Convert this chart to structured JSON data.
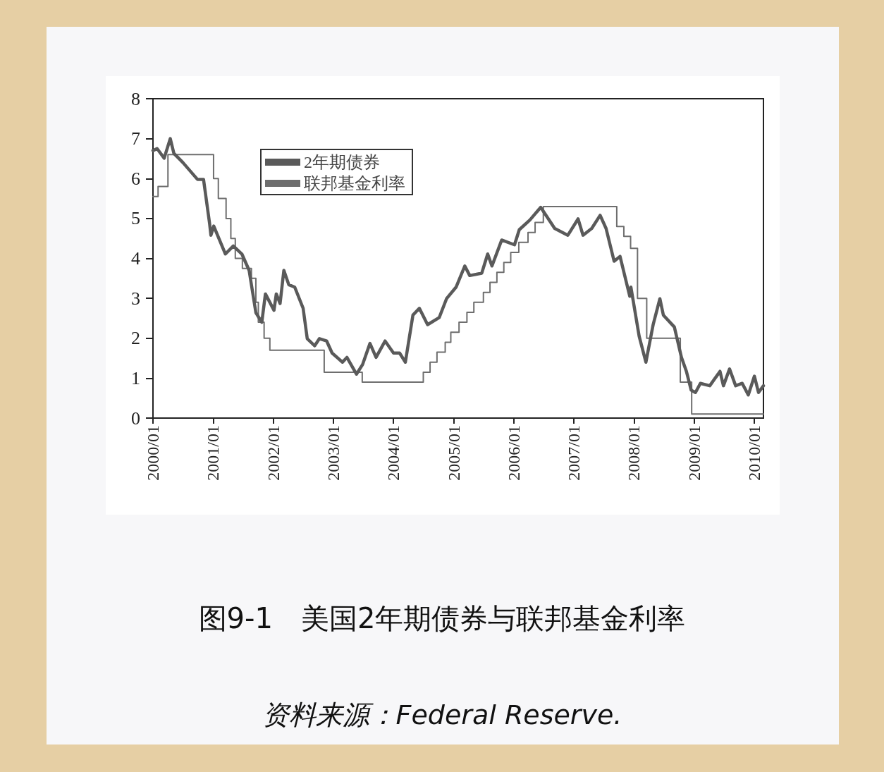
{
  "chart_data": {
    "type": "line",
    "title": "图9-1　美国2年期债券与联邦基金利率",
    "annotations": [
      "资料来源：Federal Reserve."
    ],
    "xlim": [
      "2000-01-01",
      "2010-02-25"
    ],
    "xticks": [
      {
        "value": "2000-01-01",
        "label": "2000/01"
      },
      {
        "value": "2001-01-01",
        "label": "2001/01"
      },
      {
        "value": "2002-01-01",
        "label": "2002/01"
      },
      {
        "value": "2003-01-01",
        "label": "2003/01"
      },
      {
        "value": "2004-01-01",
        "label": "2004/01"
      },
      {
        "value": "2005-01-01",
        "label": "2005/01"
      },
      {
        "value": "2006-01-01",
        "label": "2006/01"
      },
      {
        "value": "2007-01-01",
        "label": "2007/01"
      },
      {
        "value": "2008-01-01",
        "label": "2008/01"
      },
      {
        "value": "2009-01-01",
        "label": "2009/01"
      },
      {
        "value": "2010-01-01",
        "label": "2010/01"
      }
    ],
    "ylim": [
      0,
      8
    ],
    "yticks": [
      0,
      1,
      2,
      3,
      4,
      5,
      6,
      7,
      8
    ],
    "grid": false,
    "legend": "top left",
    "marker": "none",
    "line_style": "solid",
    "series": [
      {
        "name": "2年期债券",
        "color": "#5a5a5a",
        "x": [
          "2000-01-01",
          "2000-01-26",
          "2000-03-09",
          "2000-04-15",
          "2000-05-07",
          "2000-07-01",
          "2000-09-27",
          "2000-11-03",
          "2000-12-10",
          "2000-12-18",
          "2001-01-04",
          "2001-03-16",
          "2001-05-03",
          "2001-06-24",
          "2001-08-07",
          "2001-09-17",
          "2001-10-23",
          "2001-11-14",
          "2002-01-05",
          "2002-01-19",
          "2002-02-11",
          "2002-03-06",
          "2002-04-05",
          "2002-05-11",
          "2002-07-01",
          "2002-07-26",
          "2002-09-09",
          "2002-10-08",
          "2002-11-21",
          "2002-12-24",
          "2003-02-25",
          "2003-03-24",
          "2003-05-21",
          "2003-06-27",
          "2003-08-11",
          "2003-09-17",
          "2003-11-11",
          "2004-01-01",
          "2004-02-07",
          "2004-03-13",
          "2004-04-28",
          "2004-06-06",
          "2004-07-26",
          "2004-10-05",
          "2004-11-18",
          "2005-01-15",
          "2005-03-09",
          "2005-04-08",
          "2005-06-20",
          "2005-07-26",
          "2005-08-21",
          "2005-10-19",
          "2006-01-05",
          "2006-02-03",
          "2006-04-08",
          "2006-06-13",
          "2006-09-06",
          "2006-11-25",
          "2007-01-26",
          "2007-02-25",
          "2007-04-19",
          "2007-06-09",
          "2007-07-15",
          "2007-09-02",
          "2007-10-08",
          "2007-12-06",
          "2007-12-13",
          "2008-02-01",
          "2008-03-13",
          "2008-04-26",
          "2008-06-06",
          "2008-06-27",
          "2008-09-02",
          "2008-10-15",
          "2008-11-14",
          "2008-12-13",
          "2009-01-08",
          "2009-02-07",
          "2009-04-05",
          "2009-06-06",
          "2009-06-27",
          "2009-08-03",
          "2009-09-09",
          "2009-10-19",
          "2009-11-25",
          "2010-01-01",
          "2010-01-26",
          "2010-02-25"
        ],
        "values": [
          6.7,
          6.75,
          6.51,
          7.0,
          6.63,
          6.4,
          5.98,
          5.98,
          4.87,
          4.58,
          4.81,
          4.11,
          4.31,
          4.11,
          3.7,
          2.64,
          2.4,
          3.11,
          2.7,
          3.11,
          2.87,
          3.7,
          3.34,
          3.28,
          2.75,
          1.99,
          1.81,
          1.99,
          1.93,
          1.63,
          1.4,
          1.52,
          1.1,
          1.34,
          1.87,
          1.52,
          1.93,
          1.63,
          1.63,
          1.4,
          2.58,
          2.75,
          2.34,
          2.52,
          2.99,
          3.28,
          3.81,
          3.57,
          3.63,
          4.11,
          3.81,
          4.46,
          4.34,
          4.72,
          4.96,
          5.28,
          4.75,
          4.58,
          4.99,
          4.58,
          4.75,
          5.08,
          4.75,
          3.93,
          4.05,
          3.05,
          3.28,
          2.05,
          1.4,
          2.34,
          2.99,
          2.58,
          2.28,
          1.52,
          1.17,
          0.7,
          0.64,
          0.87,
          0.81,
          1.17,
          0.81,
          1.23,
          0.81,
          0.87,
          0.58,
          1.05,
          0.64,
          0.81
        ]
      },
      {
        "name": "联邦基金利率",
        "color": "#6e6e6e",
        "type": "step",
        "x": [
          "2000-01-01",
          "2000-02-01",
          "2000-04-01",
          "2001-01-03",
          "2001-02-01",
          "2001-03-20",
          "2001-04-18",
          "2001-05-15",
          "2001-06-27",
          "2001-08-21",
          "2001-09-17",
          "2001-10-02",
          "2001-11-06",
          "2001-12-11",
          "2002-11-06",
          "2003-06-25",
          "2004-06-30",
          "2004-08-10",
          "2004-09-21",
          "2004-11-10",
          "2004-12-14",
          "2005-02-02",
          "2005-03-22",
          "2005-05-03",
          "2005-06-30",
          "2005-08-09",
          "2005-09-20",
          "2005-11-01",
          "2005-12-13",
          "2006-01-31",
          "2006-03-28",
          "2006-05-10",
          "2006-06-29",
          "2007-09-18",
          "2007-10-31",
          "2007-12-11",
          "2008-01-22",
          "2008-03-18",
          "2008-10-08",
          "2008-12-16",
          "2010-02-25"
        ],
        "values": [
          5.55,
          5.8,
          6.6,
          6.0,
          5.5,
          5.0,
          4.5,
          4.0,
          3.75,
          3.5,
          2.9,
          2.4,
          2.0,
          1.7,
          1.15,
          0.9,
          1.15,
          1.4,
          1.65,
          1.9,
          2.15,
          2.4,
          2.65,
          2.9,
          3.15,
          3.4,
          3.65,
          3.9,
          4.15,
          4.4,
          4.65,
          4.9,
          5.3,
          4.8,
          4.55,
          4.25,
          3.0,
          2.0,
          0.9,
          0.1,
          0.1
        ]
      }
    ]
  }
}
